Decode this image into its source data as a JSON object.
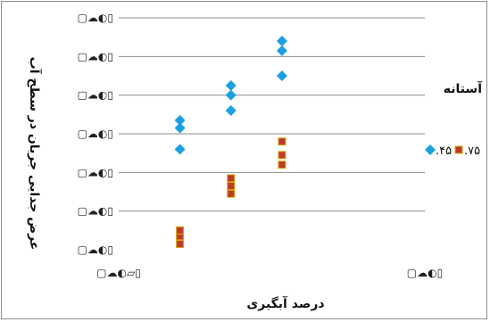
{
  "chart_data": {
    "type": "scatter",
    "title": "",
    "xlabel": "درصد آبگیری",
    "ylabel": "عرض جدایی جریان در سطح آب",
    "x_tick_labels": [
      "▢☁◐▱▯",
      "▢☁◐▯"
    ],
    "y_tick_labels": [
      "▢☁◐▯",
      "▢☁◐▯",
      "▢☁◐▯",
      "▢☁◐▯",
      "▢☁◐▯",
      "▢☁◐▯",
      "▢☁◐▯"
    ],
    "xlim": [
      0,
      0.6
    ],
    "ylim": [
      0,
      0.6
    ],
    "grid": "horizontal",
    "legend": {
      "title": "آستانه",
      "placement": "right",
      "entries": [
        {
          "label": ".۴۵",
          "color": "#1ba1e2",
          "marker": "diamond"
        },
        {
          "label": ".۷۵",
          "color": "#c0392b",
          "marker": "square"
        }
      ]
    },
    "series": [
      {
        "name": ".۴۵",
        "color": "#1ba1e2",
        "marker": "diamond",
        "points": [
          {
            "x": 0.12,
            "y": 0.26
          },
          {
            "x": 0.12,
            "y": 0.315
          },
          {
            "x": 0.12,
            "y": 0.335
          },
          {
            "x": 0.22,
            "y": 0.36
          },
          {
            "x": 0.22,
            "y": 0.4
          },
          {
            "x": 0.22,
            "y": 0.425
          },
          {
            "x": 0.32,
            "y": 0.45
          },
          {
            "x": 0.32,
            "y": 0.515
          },
          {
            "x": 0.32,
            "y": 0.54
          }
        ]
      },
      {
        "name": ".۷۵",
        "color": "#c0392b",
        "marker": "square",
        "points": [
          {
            "x": 0.12,
            "y": 0.015
          },
          {
            "x": 0.12,
            "y": 0.035
          },
          {
            "x": 0.12,
            "y": 0.05
          },
          {
            "x": 0.22,
            "y": 0.145
          },
          {
            "x": 0.22,
            "y": 0.165
          },
          {
            "x": 0.22,
            "y": 0.185
          },
          {
            "x": 0.32,
            "y": 0.22
          },
          {
            "x": 0.32,
            "y": 0.245
          },
          {
            "x": 0.32,
            "y": 0.28
          }
        ]
      }
    ]
  }
}
